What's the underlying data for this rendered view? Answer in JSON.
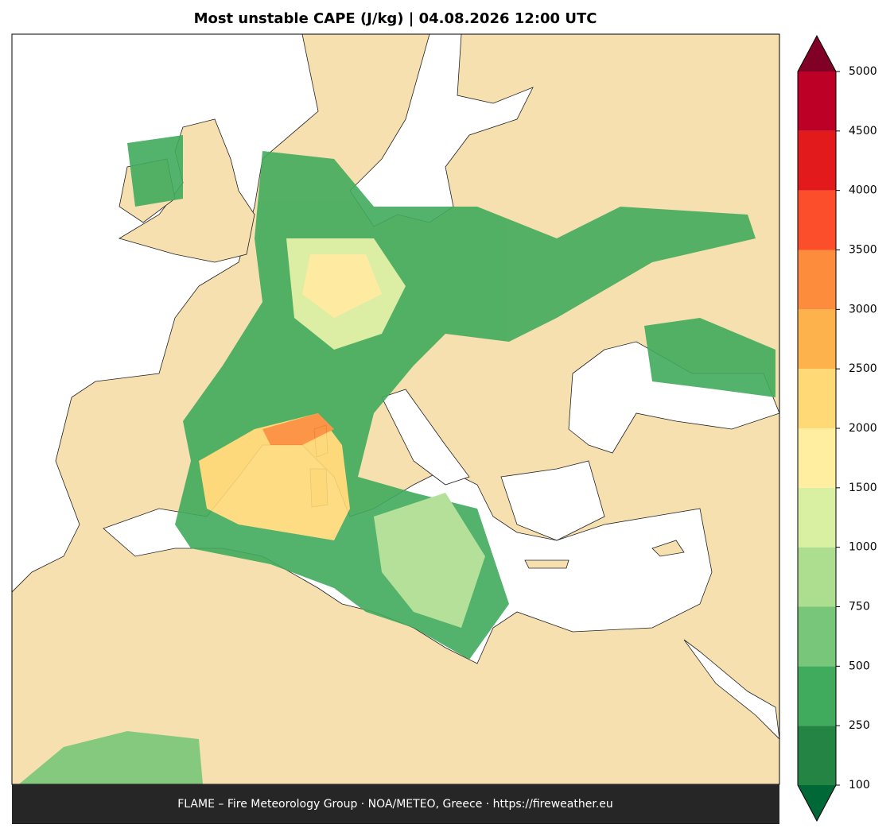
{
  "title": "Most unstable CAPE (J/kg)  |  04.08.2026 12:00 UTC",
  "footer": "FLAME – Fire Meteorology Group · NOA/METEO, Greece · https://fireweather.eu",
  "colorbar": {
    "levels": [
      100,
      250,
      500,
      750,
      1000,
      1500,
      2000,
      2500,
      3000,
      3500,
      4000,
      4500,
      5000
    ],
    "colors": [
      "#238443",
      "#41ab5d",
      "#78c679",
      "#addd8e",
      "#d9f0a3",
      "#ffeda0",
      "#fed976",
      "#feb24c",
      "#fd8d3c",
      "#fc4e2a",
      "#e31a1c",
      "#bd0026"
    ],
    "under_color": "#006837",
    "over_color": "#800026"
  }
}
